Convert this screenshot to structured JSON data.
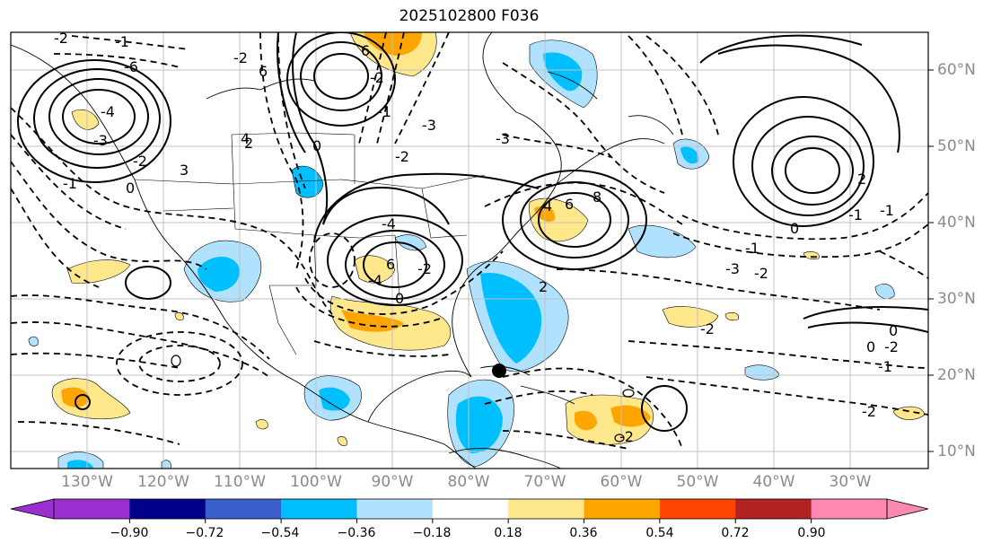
{
  "title": "2025102800 F036",
  "lat_labels": [
    "60°N",
    "50°N",
    "40°N",
    "30°N",
    "20°N",
    "10°N"
  ],
  "lon_labels": [
    "130°W",
    "120°W",
    "110°W",
    "100°W",
    "90°W",
    "80°W",
    "70°W",
    "60°W",
    "50°W",
    "40°W",
    "30°W"
  ],
  "colorbar": {
    "ticks": [
      "−0.90",
      "−0.72",
      "−0.54",
      "−0.36",
      "−0.18",
      "0.18",
      "0.36",
      "0.54",
      "0.72",
      "0.90"
    ],
    "colors": [
      "#9b30d0",
      "#00008b",
      "#3a5fcd",
      "#00bfff",
      "#b0e2ff",
      "#ffffff",
      "#ffe88c",
      "#ffa500",
      "#ff4500",
      "#b22222",
      "#ff88b0"
    ]
  },
  "contour_labels": [
    "-2",
    "-1",
    "-6",
    "-4",
    "-3",
    "-2",
    "-1",
    "0",
    "3",
    "4",
    "6",
    "-2",
    "6",
    "-2",
    "0",
    "2",
    "-1",
    "-2",
    "-3",
    "-4",
    "6",
    "-2",
    "-4",
    "0",
    "2",
    "4",
    "6",
    "8",
    "-3",
    "-3",
    "-1",
    "-2",
    "0",
    "2",
    "-1",
    "-2",
    "-1",
    "-2",
    "0",
    "0",
    "-2",
    "-1",
    "-2"
  ],
  "marker": "storm-center"
}
